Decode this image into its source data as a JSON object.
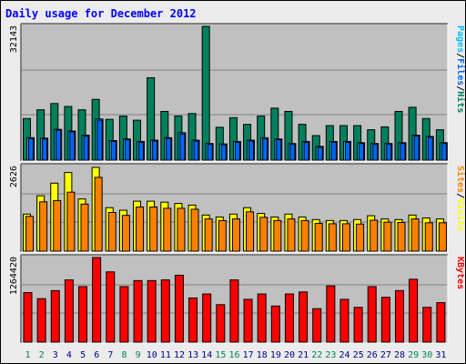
{
  "chart_data": [
    {
      "type": "bar",
      "title": "Daily usage for December 2012",
      "days": [
        "1",
        "2",
        "3",
        "4",
        "5",
        "6",
        "7",
        "8",
        "9",
        "10",
        "11",
        "12",
        "13",
        "14",
        "15",
        "16",
        "17",
        "18",
        "19",
        "20",
        "21",
        "22",
        "23",
        "24",
        "25",
        "26",
        "27",
        "28",
        "29",
        "30",
        "31"
      ],
      "weekend_days": [
        "1",
        "2",
        "8",
        "9",
        "15",
        "16",
        "22",
        "23",
        "29",
        "30"
      ],
      "ymax_label": "32143",
      "ymax": 32143,
      "legend": [
        "Pages",
        "Files",
        "Hits"
      ],
      "series": [
        {
          "name": "Hits",
          "color": "#00805c",
          "values": [
            10000,
            12100,
            13600,
            12900,
            12100,
            14600,
            9800,
            10600,
            9600,
            19800,
            11700,
            10600,
            11200,
            32143,
            7900,
            10200,
            8600,
            10600,
            12500,
            11700,
            8600,
            5900,
            8300,
            8300,
            8300,
            7300,
            8000,
            11700,
            12700,
            10000,
            7300
          ]
        },
        {
          "name": "Files",
          "color": "#00c0ff",
          "values": [
            5400,
            5300,
            7400,
            7000,
            6000,
            9900,
            4700,
            5100,
            4500,
            4800,
            5400,
            6600,
            4800,
            4000,
            3900,
            4500,
            4800,
            5400,
            5100,
            4000,
            4500,
            3300,
            4500,
            4500,
            4200,
            4000,
            4000,
            4200,
            6000,
            5700,
            4200
          ]
        },
        {
          "name": "Pages",
          "color": "#0066ff",
          "values": [
            5200,
            5100,
            7200,
            6800,
            5800,
            9600,
            4500,
            4900,
            4300,
            4600,
            5200,
            6300,
            4600,
            3800,
            3700,
            4300,
            4600,
            5100,
            4900,
            3800,
            4300,
            3100,
            4300,
            4300,
            4000,
            3800,
            3800,
            4000,
            5800,
            5500,
            4000
          ]
        }
      ]
    },
    {
      "type": "bar",
      "ymax_label": "2626",
      "ymax": 2626,
      "legend": [
        "Sites",
        "Visits"
      ],
      "series": [
        {
          "name": "Visits",
          "color": "#ffff00",
          "values": [
            1150,
            1720,
            2110,
            2440,
            1620,
            2600,
            1350,
            1270,
            1550,
            1550,
            1520,
            1480,
            1430,
            1120,
            1060,
            1150,
            1350,
            1170,
            1060,
            1150,
            1060,
            980,
            950,
            950,
            980,
            1100,
            1000,
            980,
            1120,
            1030,
            1000
          ]
        },
        {
          "name": "Sites",
          "color": "#ff8000",
          "values": [
            1080,
            1530,
            1570,
            1830,
            1460,
            2290,
            1200,
            1110,
            1370,
            1370,
            1330,
            1330,
            1300,
            1000,
            950,
            1000,
            1220,
            1050,
            950,
            1000,
            950,
            860,
            850,
            850,
            840,
            960,
            900,
            890,
            1000,
            880,
            880
          ]
        }
      ]
    },
    {
      "type": "bar",
      "ymax_label": "1264420",
      "ymax": 1264420,
      "legend": [
        "KBytes"
      ],
      "series": [
        {
          "name": "KBytes",
          "color": "#ff0000",
          "values": [
            740000,
            650000,
            770000,
            930000,
            830000,
            1264420,
            1050000,
            830000,
            920000,
            920000,
            930000,
            1000000,
            660000,
            720000,
            560000,
            930000,
            640000,
            720000,
            540000,
            720000,
            750000,
            500000,
            840000,
            640000,
            520000,
            830000,
            670000,
            770000,
            940000,
            520000,
            590000
          ]
        }
      ]
    }
  ]
}
